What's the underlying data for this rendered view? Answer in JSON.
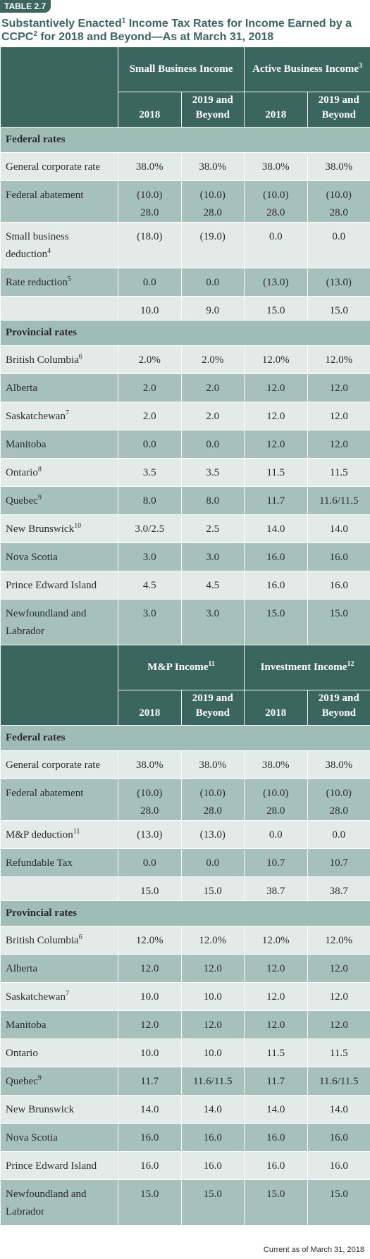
{
  "tag": "TABLE 2.7",
  "title": {
    "part1": "Substantively Enacted",
    "sup1": "1",
    "part2": " Income Tax Rates for Income Earned by a CCPC",
    "sup2": "2",
    "part3": " for 2018 and Beyond—As at March 31, 2018"
  },
  "col_2018": "2018",
  "col_2019": "2019 and Beyond",
  "section_federal": "Federal rates",
  "section_provincial": "Provincial rates",
  "top": {
    "group1": "Small Business Income",
    "group2": "Active Business Income",
    "group2_sup": "3",
    "federal": [
      {
        "label": "General corporate rate",
        "vals": [
          "38.0%",
          "38.0%",
          "38.0%",
          "38.0%"
        ]
      },
      {
        "label": "Federal abatement",
        "vals": [
          "(10.0)",
          "(10.0)",
          "(10.0)",
          "(10.0)"
        ],
        "vals2": [
          "28.0",
          "28.0",
          "28.0",
          "28.0"
        ]
      },
      {
        "label": "Small business deduction",
        "sup": "4",
        "vals": [
          "(18.0)",
          "(19.0)",
          "0.0",
          "0.0"
        ]
      },
      {
        "label": "Rate reduction",
        "sup": "5",
        "vals": [
          "0.0",
          "0.0",
          "(13.0)",
          "(13.0)"
        ]
      },
      {
        "label": "",
        "vals": [
          "10.0",
          "9.0",
          "15.0",
          "15.0"
        ]
      }
    ],
    "provincial": [
      {
        "label": "British Columbia",
        "sup": "6",
        "vals": [
          "2.0%",
          "2.0%",
          "12.0%",
          "12.0%"
        ]
      },
      {
        "label": "Alberta",
        "vals": [
          "2.0",
          "2.0",
          "12.0",
          "12.0"
        ]
      },
      {
        "label": "Saskatchewan",
        "sup": "7",
        "vals": [
          "2.0",
          "2.0",
          "12.0",
          "12.0"
        ]
      },
      {
        "label": "Manitoba",
        "vals": [
          "0.0",
          "0.0",
          "12.0",
          "12.0"
        ]
      },
      {
        "label": "Ontario",
        "sup": "8",
        "vals": [
          "3.5",
          "3.5",
          "11.5",
          "11.5"
        ]
      },
      {
        "label": "Quebec",
        "sup": "9",
        "vals": [
          "8.0",
          "8.0",
          "11.7",
          "11.6/11.5"
        ]
      },
      {
        "label": "New Brunswick",
        "sup": "10",
        "vals": [
          "3.0/2.5",
          "2.5",
          "14.0",
          "14.0"
        ]
      },
      {
        "label": "Nova Scotia",
        "vals": [
          "3.0",
          "3.0",
          "16.0",
          "16.0"
        ]
      },
      {
        "label": "Prince Edward Island",
        "vals": [
          "4.5",
          "4.5",
          "16.0",
          "16.0"
        ]
      },
      {
        "label": "Newfoundland and Labrador",
        "vals": [
          "3.0",
          "3.0",
          "15.0",
          "15.0"
        ]
      }
    ]
  },
  "bottom": {
    "group1": "M&P Income",
    "group1_sup": "11",
    "group2": "Investment Income",
    "group2_sup": "12",
    "federal": [
      {
        "label": "General corporate rate",
        "vals": [
          "38.0%",
          "38.0%",
          "38.0%",
          "38.0%"
        ]
      },
      {
        "label": "Federal abatement",
        "vals": [
          "(10.0)",
          "(10.0)",
          "(10.0)",
          "(10.0)"
        ],
        "vals2": [
          "28.0",
          "28.0",
          "28.0",
          "28.0"
        ]
      },
      {
        "label": "M&P deduction",
        "sup": "11",
        "vals": [
          "(13.0)",
          "(13.0)",
          "0.0",
          "0.0"
        ]
      },
      {
        "label": "Refundable Tax",
        "vals": [
          "0.0",
          "0.0",
          "10.7",
          "10.7"
        ]
      },
      {
        "label": "",
        "vals": [
          "15.0",
          "15.0",
          "38.7",
          "38.7"
        ]
      }
    ],
    "provincial": [
      {
        "label": "British Columbia",
        "sup": "6",
        "vals": [
          "12.0%",
          "12.0%",
          "12.0%",
          "12.0%"
        ]
      },
      {
        "label": "Alberta",
        "vals": [
          "12.0",
          "12.0",
          "12.0",
          "12.0"
        ]
      },
      {
        "label": "Saskatchewan",
        "sup": "7",
        "vals": [
          "10.0",
          "10.0",
          "12.0",
          "12.0"
        ]
      },
      {
        "label": "Manitoba",
        "vals": [
          "12.0",
          "12.0",
          "12.0",
          "12.0"
        ]
      },
      {
        "label": "Ontario",
        "vals": [
          "10.0",
          "10.0",
          "11.5",
          "11.5"
        ]
      },
      {
        "label": "Quebec",
        "sup": "9",
        "vals": [
          "11.7",
          "11.6/11.5",
          "11.7",
          "11.6/11.5"
        ]
      },
      {
        "label": "New Brunswick",
        "vals": [
          "14.0",
          "14.0",
          "14.0",
          "14.0"
        ]
      },
      {
        "label": "Nova Scotia",
        "vals": [
          "16.0",
          "16.0",
          "16.0",
          "16.0"
        ]
      },
      {
        "label": "Prince Edward Island",
        "vals": [
          "16.0",
          "16.0",
          "16.0",
          "16.0"
        ]
      },
      {
        "label": "Newfoundland and Labrador",
        "vals": [
          "15.0",
          "15.0",
          "15.0",
          "15.0"
        ]
      }
    ]
  },
  "footer": "Current as of March 31, 2018"
}
